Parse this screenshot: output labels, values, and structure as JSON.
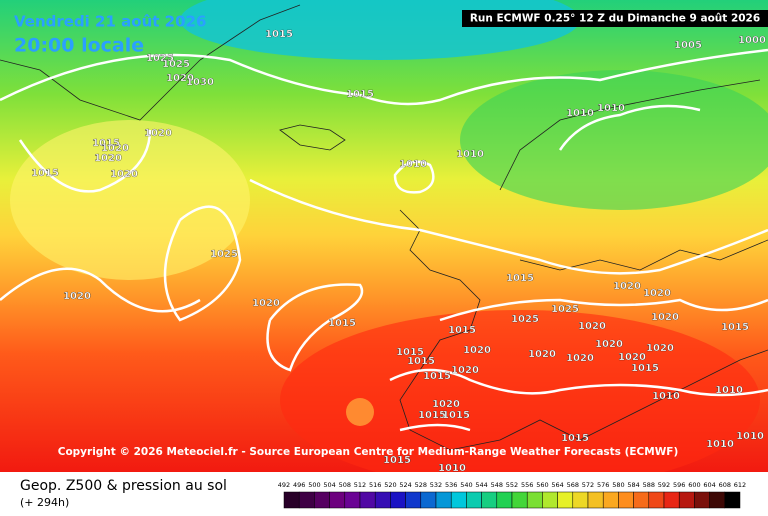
{
  "header": {
    "date": "Vendredi 21 août 2026",
    "time": "20:00 locale",
    "run": "Run ECMWF 0.25° 12 Z du Dimanche 9 août 2026"
  },
  "copyright": "Copyright © 2026 Meteociel.fr - Source European Centre for Medium-Range Weather Forecasts (ECMWF)",
  "footer": {
    "title": "Geop. Z500 & pression au sol",
    "lead": "(+ 294h)"
  },
  "colorbar": {
    "ticks": [
      492,
      496,
      500,
      504,
      508,
      512,
      516,
      520,
      524,
      528,
      532,
      536,
      540,
      544,
      548,
      552,
      556,
      560,
      564,
      568,
      572,
      576,
      580,
      584,
      588,
      592,
      596,
      600,
      604,
      608,
      612
    ]
  },
  "isobar_labels": [
    "1015",
    "1025",
    "1025",
    "1020",
    "1030",
    "1015",
    "1020",
    "1015",
    "1020",
    "1020",
    "1020",
    "1015",
    "1010",
    "1010",
    "1025",
    "1020",
    "1020",
    "1015",
    "1005",
    "1000",
    "1010",
    "1010",
    "1015",
    "1020",
    "1020",
    "1020",
    "1015",
    "1025",
    "1015",
    "1025",
    "1020",
    "1020",
    "1015",
    "1015",
    "1020",
    "1015",
    "1020",
    "1015",
    "1015",
    "1015",
    "1010",
    "1010",
    "1010",
    "1010",
    "1010",
    "1015",
    "1020",
    "1020",
    "1020",
    "1020",
    "1020",
    "1015"
  ]
}
